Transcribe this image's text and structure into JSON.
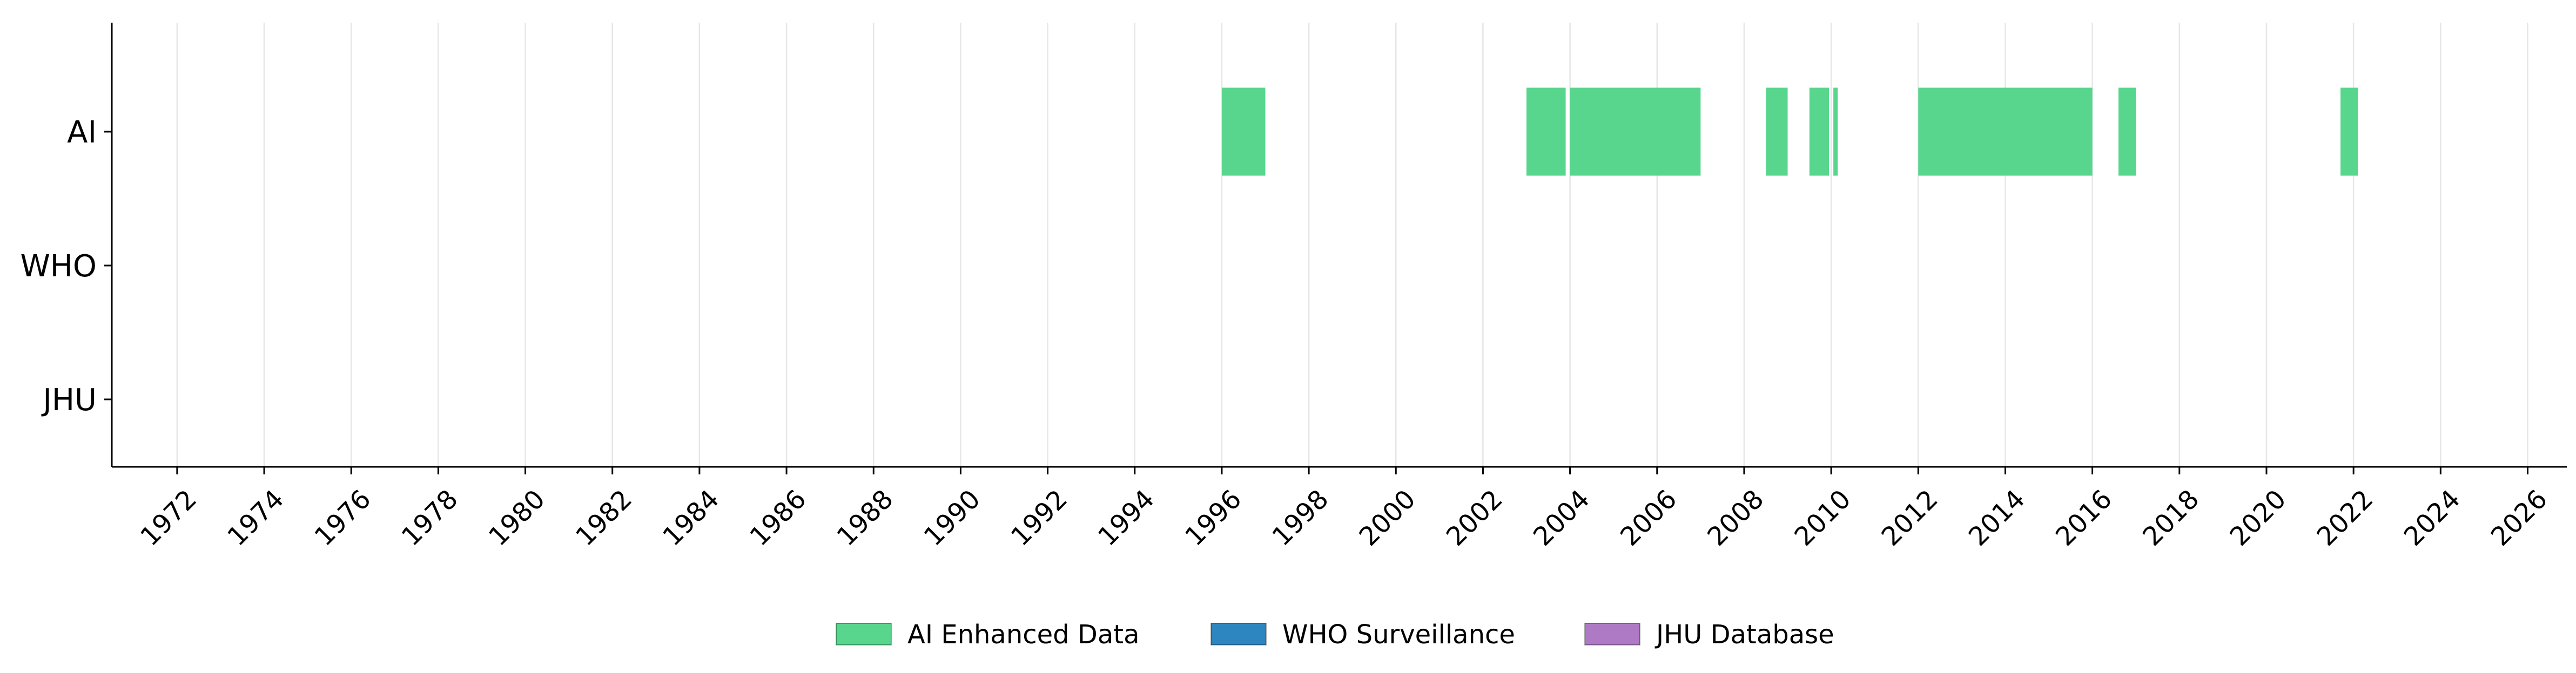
{
  "chart_data": {
    "type": "timeline",
    "title": "",
    "xlabel": "",
    "ylabel": "",
    "xlim": [
      1970.5,
      2026.9
    ],
    "x_ticks": [
      1972,
      1974,
      1976,
      1978,
      1980,
      1982,
      1984,
      1986,
      1988,
      1990,
      1992,
      1994,
      1996,
      1998,
      2000,
      2002,
      2004,
      2006,
      2008,
      2010,
      2012,
      2014,
      2016,
      2018,
      2020,
      2022,
      2024,
      2026
    ],
    "categories": [
      "AI",
      "WHO",
      "JHU"
    ],
    "grid": "vertical",
    "legend_position": "bottom-center",
    "series": [
      {
        "name": "AI Enhanced Data",
        "row": "AI",
        "color": "#58d68d",
        "intervals": [
          [
            1996.0,
            1997.0
          ],
          [
            2003.0,
            2003.9
          ],
          [
            2004.0,
            2007.0
          ],
          [
            2008.5,
            2009.0
          ],
          [
            2009.5,
            2009.95
          ],
          [
            2010.05,
            2010.15
          ],
          [
            2012.0,
            2016.0
          ],
          [
            2016.6,
            2017.0
          ],
          [
            2021.7,
            2022.1
          ]
        ]
      },
      {
        "name": "WHO Surveillance",
        "row": "WHO",
        "color": "#2e86c1",
        "intervals": []
      },
      {
        "name": "JHU Database",
        "row": "JHU",
        "color": "#af7ac5",
        "intervals": []
      }
    ]
  }
}
